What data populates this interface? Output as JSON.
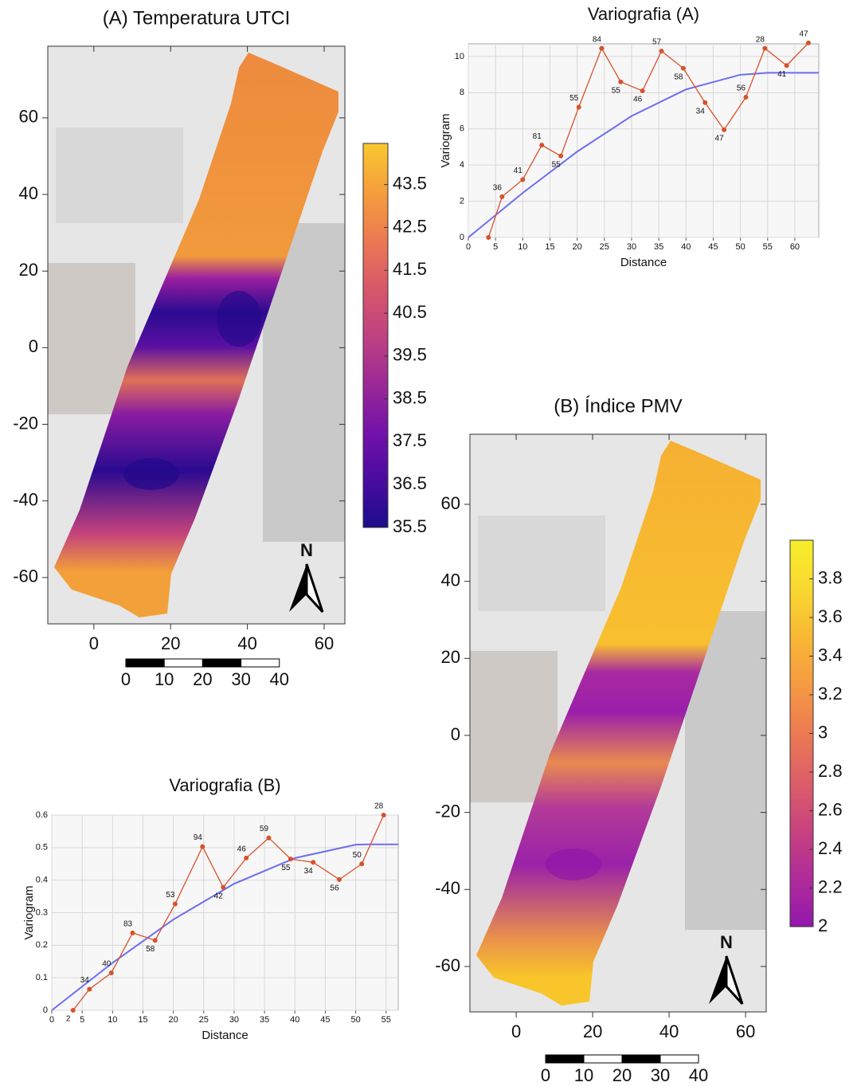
{
  "chart_data": [
    {
      "type": "map",
      "title": "(A) Temperatura UTCI",
      "xlim": [
        -12,
        65.4
      ],
      "ylim": [
        -72.1,
        78.7
      ],
      "xticks": [
        0,
        20,
        40,
        60
      ],
      "yticks": [
        -60,
        -40,
        -20,
        0,
        20,
        40,
        60
      ],
      "colorbar": {
        "lim": [
          35.5,
          44.46
        ],
        "ticks": [
          35.5,
          36.5,
          37.5,
          38.5,
          39.5,
          40.5,
          41.5,
          42.5,
          43.5
        ],
        "colors": [
          "#1c0c8c",
          "#4a0ca0",
          "#7412a8",
          "#9c2a96",
          "#bf4280",
          "#d8586a",
          "#ec7a52",
          "#f59e3c",
          "#f9c930"
        ]
      },
      "scale_bar": [
        0,
        10,
        20,
        30,
        40
      ],
      "north": "N"
    },
    {
      "type": "line",
      "title": "Variografia (A)",
      "x_label": "Distance",
      "y_label": "Variogram",
      "x": [
        3.7,
        6.2,
        10,
        13.5,
        17,
        20.3,
        24.5,
        28,
        32,
        35.5,
        39.5,
        43.5,
        47,
        51,
        54.5,
        58.5,
        62.5
      ],
      "values": [
        0,
        2.25,
        3.2,
        5.1,
        4.5,
        7.2,
        10.45,
        8.6,
        8.1,
        10.3,
        9.35,
        7.45,
        5.95,
        7.75,
        10.45,
        9.5,
        10.75
      ],
      "counts": [
        null,
        36,
        41,
        81,
        55,
        55,
        84,
        55,
        46,
        57,
        58,
        34,
        47,
        56,
        28,
        41,
        47
      ],
      "color": "#d9512c",
      "model": {
        "x": [
          0,
          10,
          20,
          30,
          40,
          50,
          55,
          64.4
        ],
        "values": [
          0,
          2.46,
          4.74,
          6.71,
          8.18,
          8.99,
          9.1,
          9.1
        ],
        "color": "#6d6df2"
      },
      "xlim": [
        0,
        64.4
      ],
      "ylim": [
        0,
        10.7
      ],
      "xticks": [
        0,
        5,
        10,
        15,
        20,
        25,
        30,
        35,
        40,
        45,
        50,
        55,
        60
      ],
      "yticks": [
        0,
        2,
        4,
        6,
        8,
        10
      ],
      "grid": true
    },
    {
      "type": "map",
      "title": "(B) Índice PMV",
      "xlim": [
        -12.1,
        65.4
      ],
      "ylim": [
        -71.8,
        78.2
      ],
      "xticks": [
        0,
        20,
        40,
        60
      ],
      "yticks": [
        -60,
        -40,
        -20,
        0,
        20,
        40,
        60
      ],
      "colorbar": {
        "lim": [
          2,
          4.0
        ],
        "ticks": [
          2,
          2.2,
          2.4,
          2.6,
          2.8,
          3,
          3.2,
          3.4,
          3.6,
          3.8
        ],
        "colors": [
          "#9318ac",
          "#b02c9a",
          "#c8427e",
          "#dc5e68",
          "#ec7a52",
          "#f59a42",
          "#f8b834",
          "#f9d830",
          "#f6ee2a"
        ]
      },
      "scale_bar": [
        0,
        10,
        20,
        30,
        40
      ],
      "north": "N"
    },
    {
      "type": "line",
      "title": "Variografia (B)",
      "x_label": "Distance",
      "y_label": "Variogram",
      "x": [
        3.5,
        6.2,
        9.8,
        13.3,
        17,
        20.3,
        24.8,
        28.2,
        32,
        35.7,
        39.3,
        43,
        47.3,
        51,
        54.6
      ],
      "values": [
        0,
        0.065,
        0.115,
        0.238,
        0.215,
        0.327,
        0.503,
        0.378,
        0.468,
        0.53,
        0.465,
        0.455,
        0.402,
        0.45,
        0.6
      ],
      "counts": [
        2,
        34,
        40,
        83,
        58,
        53,
        94,
        42,
        46,
        59,
        55,
        34,
        56,
        50,
        28
      ],
      "color": "#d9512c",
      "model": {
        "x": [
          0,
          10,
          20,
          30,
          40,
          50,
          52,
          57
        ],
        "values": [
          0,
          0.146,
          0.279,
          0.389,
          0.468,
          0.509,
          0.51,
          0.51
        ],
        "color": "#6d6df2"
      },
      "xlim": [
        0,
        57
      ],
      "ylim": [
        0,
        0.6
      ],
      "xticks": [
        0,
        5,
        10,
        15,
        20,
        25,
        30,
        35,
        40,
        45,
        50,
        55
      ],
      "yticks": [
        0,
        0.1,
        0.2,
        0.3,
        0.4,
        0.5,
        0.6
      ],
      "grid": true
    }
  ]
}
